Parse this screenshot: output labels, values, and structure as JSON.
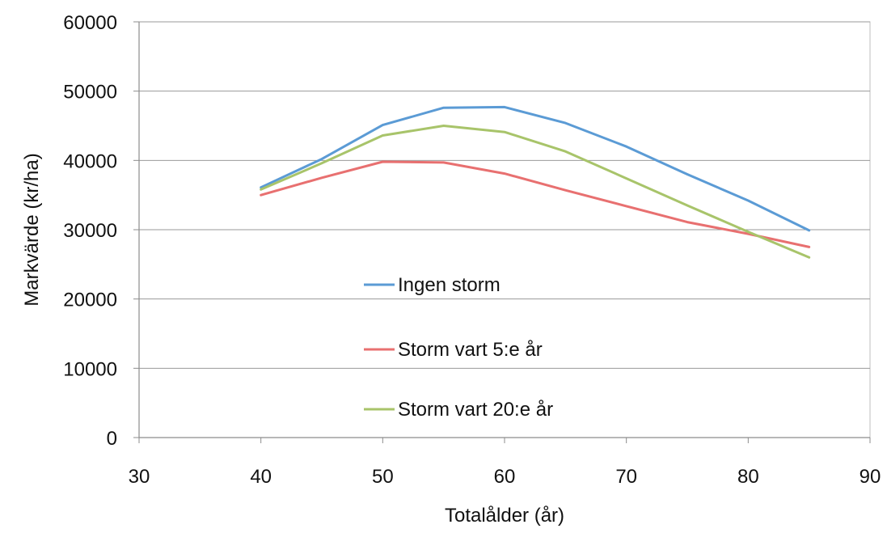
{
  "chart_data": {
    "type": "line",
    "title": "",
    "xlabel": "Totalålder (år)",
    "ylabel": "Markvärde (kr/ha)",
    "xlim": [
      30,
      90
    ],
    "ylim": [
      0,
      60000
    ],
    "xticks": [
      30,
      40,
      50,
      60,
      70,
      80,
      90
    ],
    "yticks": [
      0,
      10000,
      20000,
      30000,
      40000,
      50000,
      60000
    ],
    "grid": "horizontal",
    "legend_position": "center-left",
    "series": [
      {
        "name": "Ingen storm",
        "color": "#5b9bd5",
        "x": [
          40,
          45,
          50,
          55,
          60,
          65,
          70,
          75,
          80,
          85
        ],
        "y": [
          36100,
          40200,
          45100,
          47600,
          47700,
          45400,
          42000,
          38000,
          34200,
          29900
        ]
      },
      {
        "name": "Storm vart 5:e år",
        "color": "#e87070",
        "x": [
          40,
          45,
          50,
          55,
          60,
          65,
          70,
          75,
          80,
          85
        ],
        "y": [
          35000,
          37500,
          39800,
          39700,
          38100,
          35700,
          33400,
          31100,
          29400,
          27500
        ]
      },
      {
        "name": "Storm vart 20:e år",
        "color": "#a8c46a",
        "x": [
          40,
          45,
          50,
          55,
          60,
          65,
          70,
          75,
          80,
          85
        ],
        "y": [
          35800,
          39600,
          43600,
          45000,
          44100,
          41300,
          37400,
          33500,
          29700,
          26000
        ]
      }
    ]
  }
}
